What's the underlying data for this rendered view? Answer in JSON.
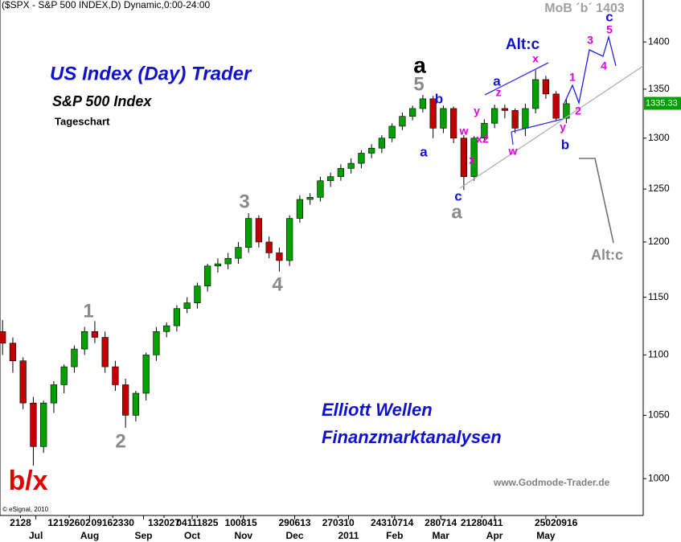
{
  "chart_data": {
    "type": "candlestick",
    "title": "($SPX - S&P 500 INDEX,D) Dynamic,0:00-24:00",
    "headline": "US Index (Day) Trader",
    "subtitle": "S&P 500 Index",
    "period": "Tageschart",
    "brand_line_1": "Elliott Wellen",
    "brand_line_2": "Finanzmarktanalysen",
    "website": "www.Godmode-Trader.de",
    "copyright": "© eSignal, 2010",
    "log_scale": true,
    "up_color": "#00a000",
    "down_color": "#c00000",
    "last_price": 1335.33,
    "last_price_color": "#00a000",
    "ylim": [
      972,
      1446
    ],
    "yticks": [
      1000,
      1050,
      1100,
      1150,
      1200,
      1250,
      1300,
      1350,
      1400
    ],
    "xlim": [
      -1,
      250
    ],
    "xticks": [
      {
        "value": 13,
        "label": "Jul"
      },
      {
        "value": 34,
        "label": "Aug"
      },
      {
        "value": 55,
        "label": "Sep"
      },
      {
        "value": 74,
        "label": "Oct"
      },
      {
        "value": 94,
        "label": "Nov"
      },
      {
        "value": 114,
        "label": "Dec"
      },
      {
        "value": 135,
        "label": "2011"
      },
      {
        "value": 153,
        "label": "Feb"
      },
      {
        "value": 171,
        "label": "Mar"
      },
      {
        "value": 192,
        "label": "Apr"
      },
      {
        "value": 212,
        "label": "May"
      }
    ],
    "day_ticks": [
      {
        "value": 7,
        "label": "2128"
      },
      {
        "value": 26,
        "label": "12192602"
      },
      {
        "value": 43,
        "label": "09162330"
      },
      {
        "value": 63,
        "label": "132027"
      },
      {
        "value": 76,
        "label": "04111825"
      },
      {
        "value": 93,
        "label": "100815"
      },
      {
        "value": 114,
        "label": "290613"
      },
      {
        "value": 131,
        "label": "270310"
      },
      {
        "value": 152,
        "label": "24310714"
      },
      {
        "value": 171,
        "label": "280714"
      },
      {
        "value": 187,
        "label": "21280411"
      },
      {
        "value": 216,
        "label": "25020916"
      }
    ],
    "x": [
      0,
      4,
      8,
      12,
      16,
      20,
      24,
      28,
      32,
      36,
      40,
      44,
      48,
      52,
      56,
      60,
      64,
      68,
      72,
      76,
      80,
      84,
      88,
      92,
      96,
      100,
      104,
      108,
      112,
      116,
      120,
      124,
      128,
      132,
      136,
      140,
      144,
      148,
      152,
      156,
      160,
      164,
      168,
      172,
      176,
      180,
      184,
      188,
      192,
      196,
      200,
      204,
      208,
      212,
      216,
      220
    ],
    "open": [
      1120,
      1110,
      1095,
      1060,
      1025,
      1060,
      1075,
      1090,
      1105,
      1120,
      1115,
      1090,
      1075,
      1050,
      1068,
      1100,
      1120,
      1125,
      1140,
      1145,
      1160,
      1178,
      1180,
      1185,
      1195,
      1222,
      1200,
      1190,
      1183,
      1222,
      1240,
      1242,
      1258,
      1262,
      1270,
      1275,
      1285,
      1290,
      1300,
      1312,
      1322,
      1330,
      1340,
      1310,
      1330,
      1300,
      1262,
      1300,
      1315,
      1330,
      1328,
      1310,
      1330,
      1360,
      1345,
      1320
    ],
    "high": [
      1130,
      1115,
      1098,
      1065,
      1062,
      1078,
      1092,
      1108,
      1124,
      1129,
      1120,
      1095,
      1080,
      1070,
      1102,
      1124,
      1128,
      1143,
      1150,
      1163,
      1180,
      1185,
      1190,
      1200,
      1227,
      1225,
      1205,
      1195,
      1225,
      1244,
      1246,
      1262,
      1266,
      1274,
      1280,
      1288,
      1294,
      1303,
      1315,
      1326,
      1333,
      1344,
      1343,
      1333,
      1332,
      1303,
      1302,
      1319,
      1334,
      1334,
      1330,
      1335,
      1370,
      1364,
      1348,
      1340
    ],
    "low": [
      1100,
      1085,
      1055,
      1010,
      1020,
      1052,
      1068,
      1085,
      1100,
      1110,
      1085,
      1070,
      1040,
      1045,
      1062,
      1095,
      1115,
      1120,
      1136,
      1140,
      1155,
      1172,
      1175,
      1180,
      1190,
      1195,
      1185,
      1173,
      1178,
      1218,
      1235,
      1238,
      1252,
      1258,
      1265,
      1270,
      1280,
      1285,
      1296,
      1308,
      1318,
      1326,
      1300,
      1305,
      1295,
      1249,
      1258,
      1296,
      1310,
      1320,
      1305,
      1302,
      1325,
      1340,
      1318,
      1315
    ],
    "close": [
      1110,
      1095,
      1060,
      1025,
      1060,
      1075,
      1090,
      1105,
      1120,
      1115,
      1090,
      1075,
      1050,
      1068,
      1100,
      1120,
      1125,
      1140,
      1145,
      1160,
      1178,
      1180,
      1185,
      1195,
      1222,
      1200,
      1190,
      1183,
      1222,
      1240,
      1242,
      1258,
      1262,
      1270,
      1275,
      1285,
      1290,
      1300,
      1312,
      1322,
      1330,
      1340,
      1310,
      1330,
      1300,
      1262,
      1300,
      1315,
      1330,
      1328,
      1310,
      1330,
      1360,
      1345,
      1320,
      1335
    ],
    "annotations": [
      "b/x",
      "1",
      "2",
      "3",
      "4",
      "5",
      "a",
      "b",
      "a",
      "c",
      "a",
      "w",
      "x",
      "y",
      "x2",
      "a",
      "z",
      "w",
      "x",
      "Alt:c",
      "y",
      "b",
      "1",
      "2",
      "3",
      "4",
      "5",
      "c",
      "MoB ´b´ 1403",
      "Alt:c"
    ]
  }
}
